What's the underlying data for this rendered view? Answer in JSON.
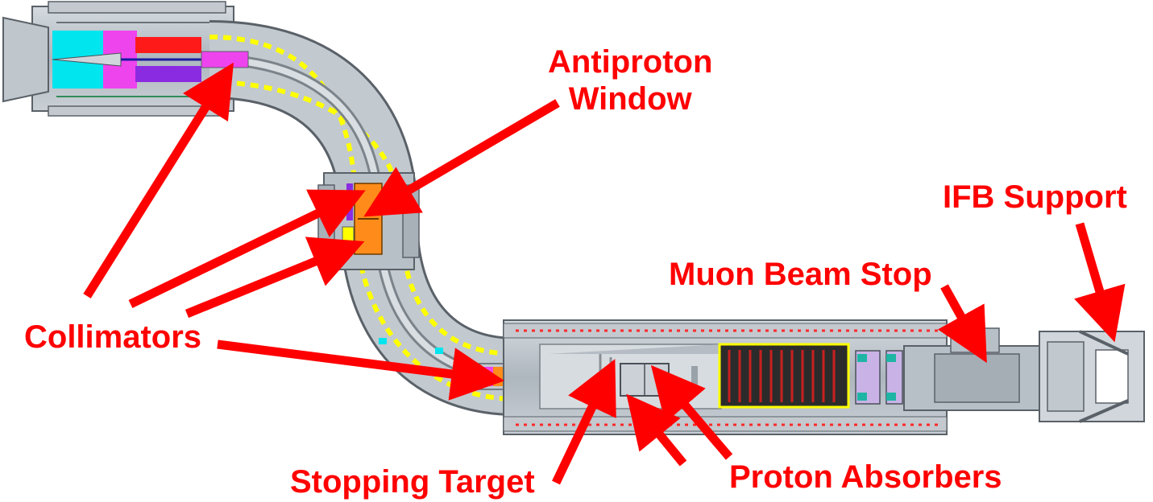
{
  "labels": {
    "antiproton_window": [
      "Antiproton",
      "Window"
    ],
    "ifb_support": "IFB Support",
    "muon_beam_stop": "Muon Beam Stop",
    "collimators": "Collimators",
    "stopping_target": "Stopping Target",
    "proton_absorbers": "Proton Absorbers"
  },
  "colors": {
    "annotation": "#ff0000",
    "cryostat": "#b4bcc4",
    "coil": "#ffff00",
    "production_target_cyan": "#00e5ee",
    "production_target_magenta": "#ee44ee",
    "antiproton_window": "#ff8c1a"
  }
}
